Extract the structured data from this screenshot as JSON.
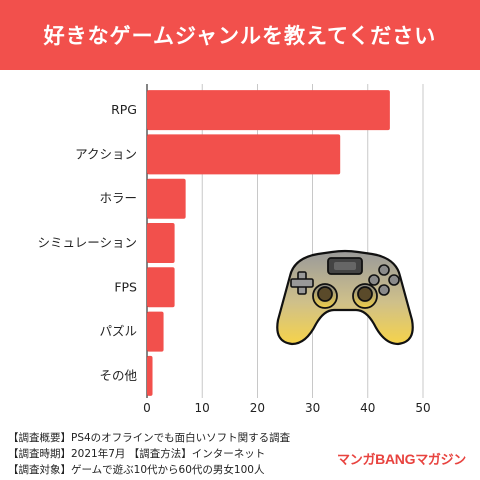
{
  "title": "好きなゲームジャンルを教えてください",
  "chart_data": {
    "type": "bar",
    "orientation": "horizontal",
    "categories": [
      "RPG",
      "アクション",
      "ホラー",
      "シミュレーション",
      "FPS",
      "パズル",
      "その他"
    ],
    "values": [
      44,
      35,
      7,
      5,
      5,
      3,
      1
    ],
    "xlim": [
      0,
      50
    ],
    "xticks": [
      "0",
      "10",
      "20",
      "30",
      "40",
      "50"
    ],
    "grid": true,
    "bar_color": "#f2504c"
  },
  "footer": {
    "line1": "【調査概要】PS4のオフラインでも面白いソフト関する調査",
    "line2": "【調査時期】2021年7月 【調査方法】インターネット",
    "line3": "【調査対象】ゲームで遊ぶ10代から60代の男女100人"
  },
  "brand": {
    "prefix": "マンガ",
    "middle": "BANG",
    "suffix": "マガジン"
  },
  "colors": {
    "header": "#f2504c",
    "bars": "#f2504c",
    "brand": "#e8433f",
    "controller_gradient_top": "#9a9a9a",
    "controller_gradient_bottom": "#f6d34a"
  },
  "icons": [
    "game-controller-icon"
  ]
}
